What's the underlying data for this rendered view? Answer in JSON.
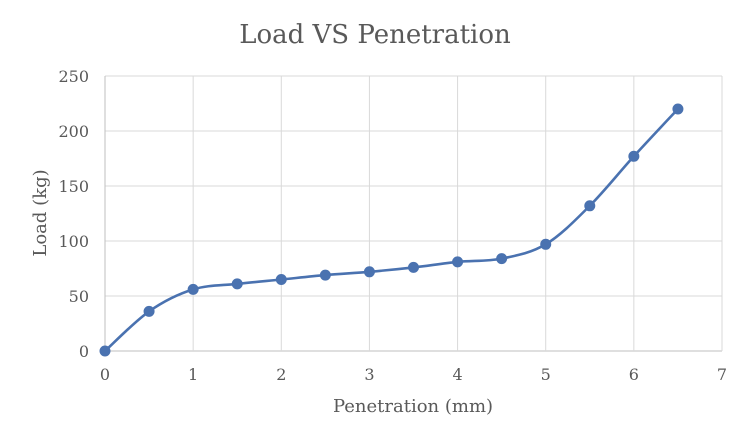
{
  "chart_data": {
    "type": "line",
    "title": "Load VS Penetration",
    "xlabel": "Penetration (mm)",
    "ylabel": "Load (kg)",
    "xlim": [
      0,
      7
    ],
    "ylim": [
      0,
      250
    ],
    "x_ticks": [
      0,
      1,
      2,
      3,
      4,
      5,
      6,
      7
    ],
    "y_ticks": [
      0,
      50,
      100,
      150,
      200,
      250
    ],
    "grid": true,
    "smooth": true,
    "markers": true,
    "color": "#4a72b0",
    "series": [
      {
        "x": [
          0,
          0.5,
          1,
          1.5,
          2,
          2.5,
          3,
          3.5,
          4,
          4.5,
          5,
          5.5,
          6,
          6.5
        ],
        "y": [
          0,
          36,
          56,
          61,
          65,
          69,
          72,
          76,
          81,
          84,
          97,
          132,
          177,
          220
        ]
      }
    ]
  }
}
